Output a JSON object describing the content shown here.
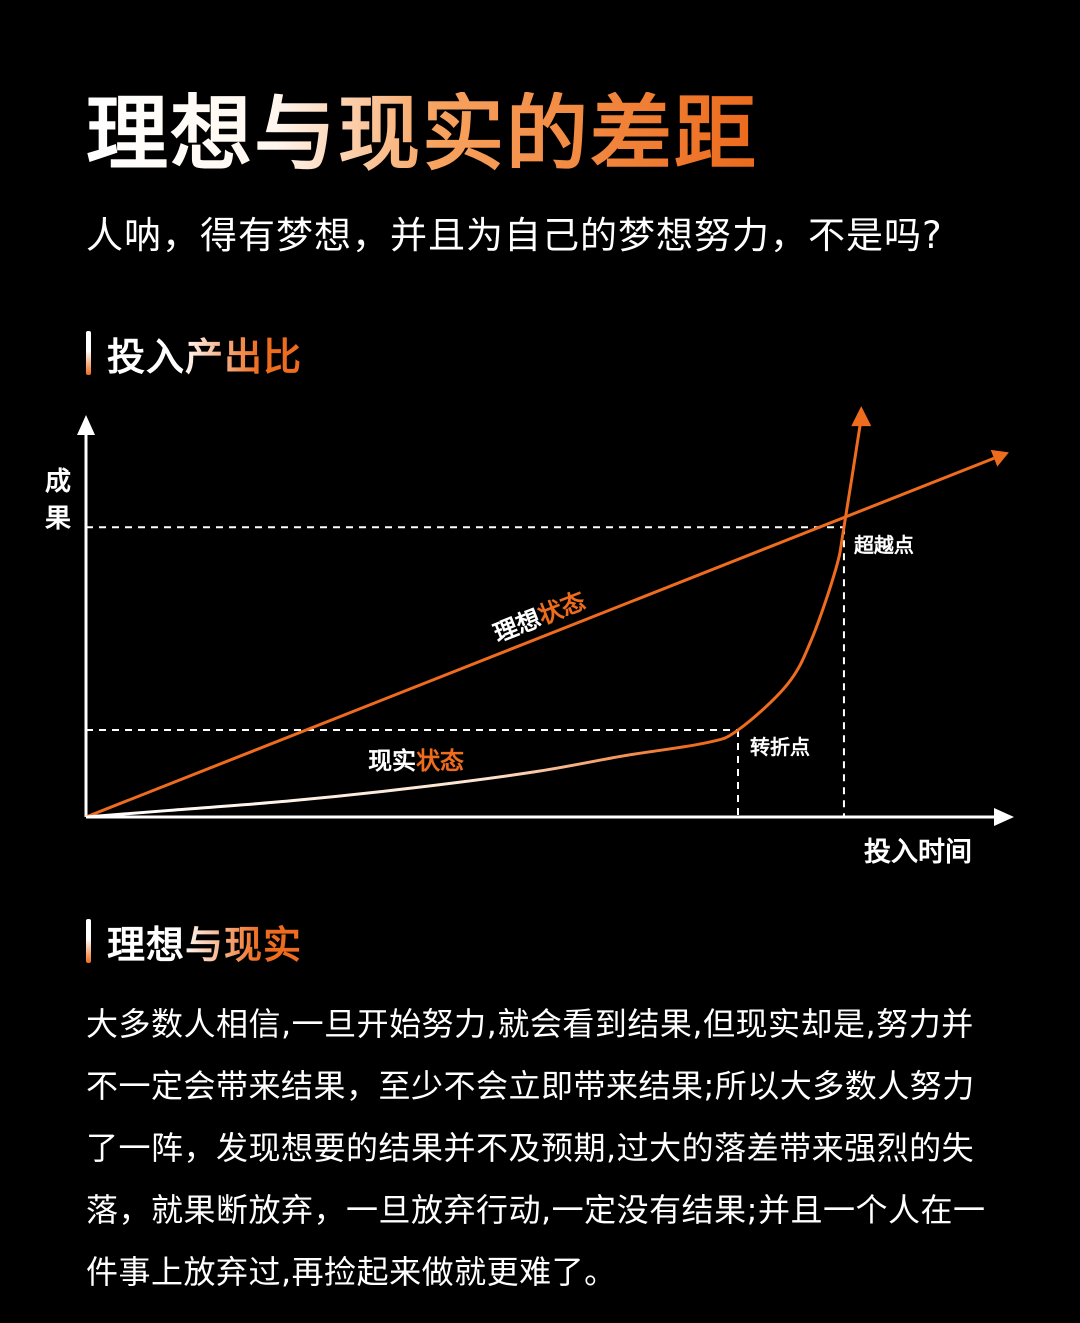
{
  "title": "理想与现实的差距",
  "subtitle": "人呐，得有梦想，并且为自己的梦想努力，不是吗?",
  "section1": {
    "label": "投入产出比"
  },
  "section2": {
    "label": "理想与现实"
  },
  "paragraph": "大多数人相信,一旦开始努力,就会看到结果,但现实却是,努力并不一定会带来结果，至少不会立即带来结果;所以大多数人努力了一阵，发现想要的结果并不及预期,过大的落差带来强烈的失落，就果断放弃，一旦放弃行动,一定没有结果;并且一个人在一件事上放弃过,再捡起来做就更难了。",
  "colors": {
    "accent": "#ee6c1e",
    "background": "#000000",
    "text": "#ffffff"
  },
  "chart_data": {
    "type": "line",
    "ylabel": "成果",
    "xlabel": "投入时间",
    "grid": false,
    "xlim": [
      0,
      1
    ],
    "ylim": [
      0,
      1
    ],
    "series": [
      {
        "name": "理想状态",
        "color": "#ee6c1e",
        "x": [
          0,
          1
        ],
        "y": [
          0,
          1
        ]
      },
      {
        "name": "现实状态",
        "color": "#ffffff",
        "x": [
          0,
          0.1,
          0.25,
          0.4,
          0.55,
          0.66,
          0.76,
          0.8,
          0.86,
          0.89,
          0.92,
          0.93,
          0.95
        ],
        "y": [
          0,
          0.02,
          0.05,
          0.09,
          0.14,
          0.19,
          0.23,
          0.27,
          0.41,
          0.55,
          0.77,
          0.9,
          1.22
        ]
      }
    ],
    "annotations": [
      {
        "label": "转折点",
        "x": 0.8,
        "y": 0.27
      },
      {
        "label": "超越点",
        "x": 0.93,
        "y": 0.9
      }
    ]
  }
}
